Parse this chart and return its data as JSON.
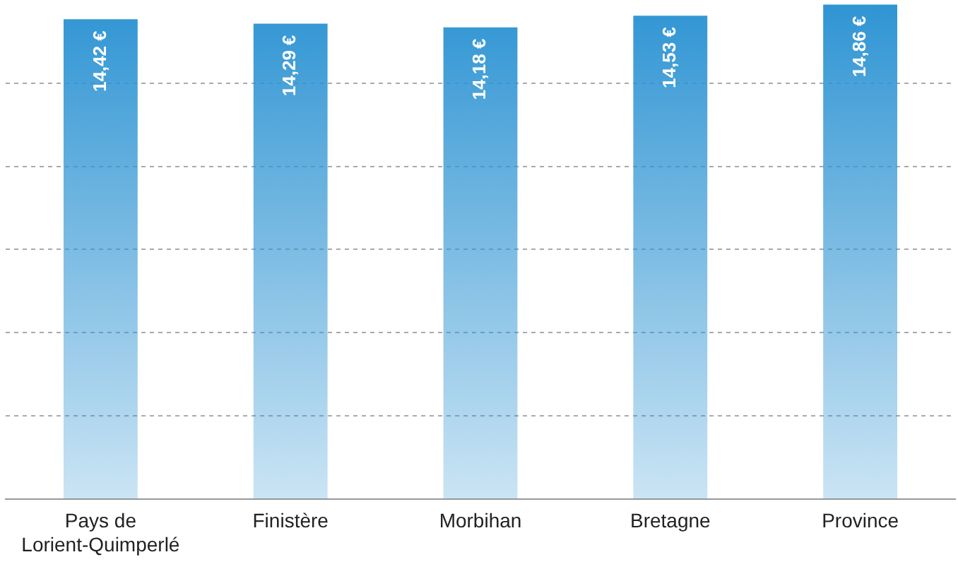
{
  "chart_data": {
    "type": "bar",
    "categories": [
      "Pays de Lorient-Quimperlé",
      "Finistère",
      "Morbihan",
      "Bretagne",
      "Province"
    ],
    "values": [
      14.42,
      14.29,
      14.18,
      14.53,
      14.86
    ],
    "value_labels": [
      "14,42 €",
      "14,29 €",
      "14,18 €",
      "14,53 €",
      "14,86 €"
    ],
    "color": "#2e94d3",
    "ylim": [
      0,
      15
    ],
    "yticks": [
      {
        "value": 2.5,
        "label": null
      },
      {
        "value": 5,
        "label": null
      },
      {
        "value": 7.5,
        "label": null
      },
      {
        "value": 10,
        "label": null
      },
      {
        "value": 12.5,
        "label": null
      }
    ],
    "grid": "y",
    "tick_labels": "x"
  }
}
